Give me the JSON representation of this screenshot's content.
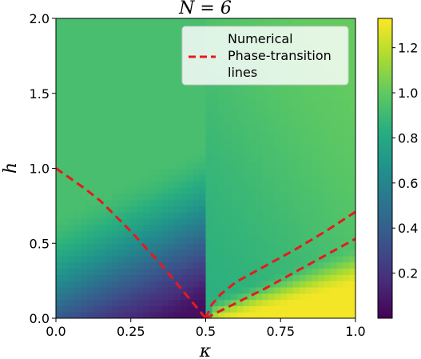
{
  "chart_data": {
    "type": "heatmap",
    "title": "N = 6",
    "xlabel": "κ",
    "ylabel": "h",
    "xlim": [
      0.0,
      1.0
    ],
    "ylim": [
      0.0,
      2.0
    ],
    "x_ticks": [
      "0.0",
      "0.25",
      "0.5",
      "0.75",
      "1.0"
    ],
    "y_ticks": [
      "0.0",
      "0.5",
      "1.0",
      "1.5",
      "2.0"
    ],
    "colorbar": {
      "colormap": "viridis",
      "range": [
        0.0,
        1.33
      ],
      "ticks": [
        "0.2",
        "0.4",
        "0.6",
        "0.8",
        "1.0",
        "1.2"
      ]
    },
    "legend": {
      "placement": "top-right",
      "entries": [
        {
          "label_lines": [
            "Numerical",
            "Phase-transition",
            "lines"
          ],
          "color": "#e8191c",
          "style": "dashed"
        }
      ]
    },
    "series": [
      {
        "x": [
          0.0,
          0.05,
          0.1,
          0.15,
          0.2,
          0.25,
          0.3,
          0.35,
          0.4,
          0.45,
          0.5
        ],
        "y": [
          1.0,
          0.93,
          0.86,
          0.78,
          0.68,
          0.58,
          0.47,
          0.36,
          0.24,
          0.12,
          0.0
        ]
      },
      {
        "x": [
          0.5,
          0.52,
          0.55,
          0.6,
          0.7,
          0.8,
          0.9,
          1.0
        ],
        "y": [
          0.0,
          0.09,
          0.16,
          0.24,
          0.35,
          0.46,
          0.58,
          0.71
        ]
      },
      {
        "x": [
          0.5,
          0.6,
          0.7,
          0.8,
          0.9,
          1.0
        ],
        "y": [
          0.0,
          0.1,
          0.2,
          0.31,
          0.42,
          0.53
        ]
      }
    ]
  }
}
